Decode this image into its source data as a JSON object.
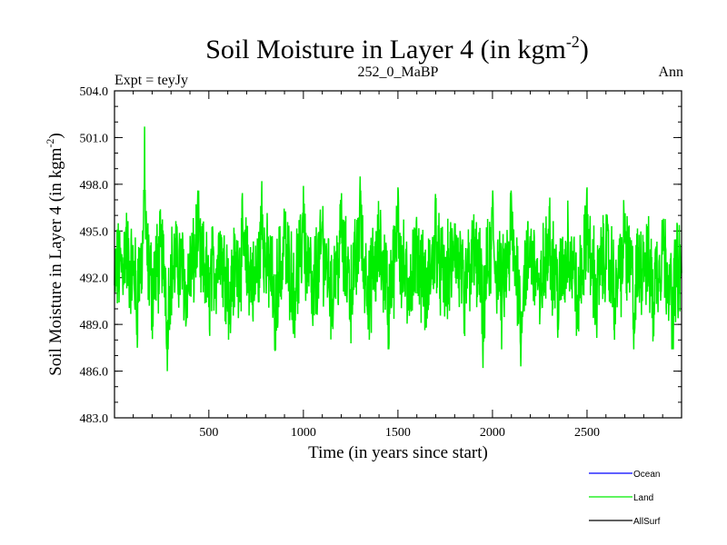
{
  "chart_data": {
    "type": "line",
    "title_main": "Soil Moisture in Layer 4 (in kgm",
    "title_sup": "-2",
    "title_end": ")",
    "subtitle_left": "Expt = teyJy",
    "subtitle_center": "252_0_MaBP",
    "subtitle_right": "Ann",
    "xlabel": "Time (in years since start)",
    "ylabel_main": "Soil Moisture in Layer 4 (in kgm",
    "ylabel_sup": "-2",
    "ylabel_end": ")",
    "xlim": [
      1,
      3000
    ],
    "ylim": [
      483.0,
      504.0
    ],
    "xticks": [
      500,
      1000,
      1500,
      2000,
      2500
    ],
    "xtick_labels": [
      "500",
      "1000",
      "1500",
      "2000",
      "2500"
    ],
    "yticks": [
      483.0,
      486.0,
      489.0,
      492.0,
      495.0,
      498.0,
      501.0,
      504.0
    ],
    "ytick_labels": [
      "483.0",
      "486.0",
      "489.0",
      "492.0",
      "495.0",
      "498.0",
      "501.0",
      "504.0"
    ],
    "legend_position": "bottom-right",
    "series": [
      {
        "name": "Ocean",
        "color": "#0000ff",
        "values": []
      },
      {
        "name": "Land",
        "color": "#00ee00",
        "x": [
          1,
          60,
          120,
          160,
          200,
          250,
          280,
          330,
          380,
          440,
          500,
          560,
          610,
          680,
          740,
          780,
          850,
          900,
          950,
          1000,
          1050,
          1100,
          1150,
          1200,
          1250,
          1300,
          1350,
          1400,
          1450,
          1500,
          1550,
          1600,
          1650,
          1700,
          1750,
          1800,
          1850,
          1900,
          1950,
          2000,
          2050,
          2100,
          2150,
          2200,
          2250,
          2300,
          2350,
          2400,
          2450,
          2500,
          2550,
          2600,
          2650,
          2700,
          2750,
          2800,
          2850,
          2900,
          2950,
          3000
        ],
        "values": [
          491.5,
          494.8,
          489.6,
          501.7,
          490.2,
          495.1,
          486.0,
          493.9,
          489.2,
          496.3,
          490.1,
          495.0,
          489.0,
          494.6,
          490.5,
          498.2,
          487.3,
          495.4,
          490.0,
          497.9,
          488.9,
          495.6,
          489.5,
          496.4,
          490.4,
          498.5,
          489.3,
          495.1,
          488.6,
          497.8,
          489.8,
          494.8,
          488.8,
          496.1,
          490.2,
          495.5,
          488.4,
          493.8,
          486.2,
          496.6,
          489.7,
          497.3,
          486.3,
          494.4,
          489.0,
          496.6,
          489.4,
          495.0,
          488.7,
          497.8,
          489.4,
          494.5,
          489.0,
          495.8,
          488.4,
          494.3,
          489.1,
          495.6,
          487.7,
          492.3
        ]
      },
      {
        "name": "AllSurf",
        "color": "#000000",
        "values": []
      }
    ]
  }
}
